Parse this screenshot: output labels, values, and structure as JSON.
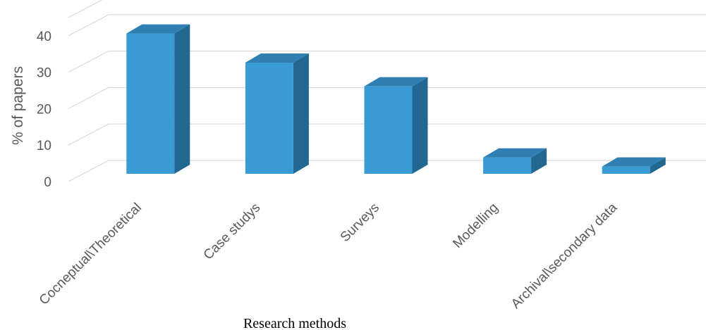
{
  "chart_data": {
    "type": "bar",
    "categories": [
      "Cocneptual\\Theoretical",
      "Case studys",
      "Surveys",
      "Modelling",
      "Archival\\secondary data"
    ],
    "values": [
      38.5,
      30.5,
      24,
      4.5,
      2
    ],
    "xlabel": "Research methods",
    "ylabel": "% of papers",
    "ylim": [
      0,
      45
    ],
    "yticks": [
      0,
      10,
      20,
      30,
      40
    ],
    "grid": true,
    "style": "3d-column",
    "colors": {
      "front": "#3a9ad4",
      "side": "#21678f",
      "top": "#2f7fb3",
      "grid": "#d9d9d9"
    }
  }
}
